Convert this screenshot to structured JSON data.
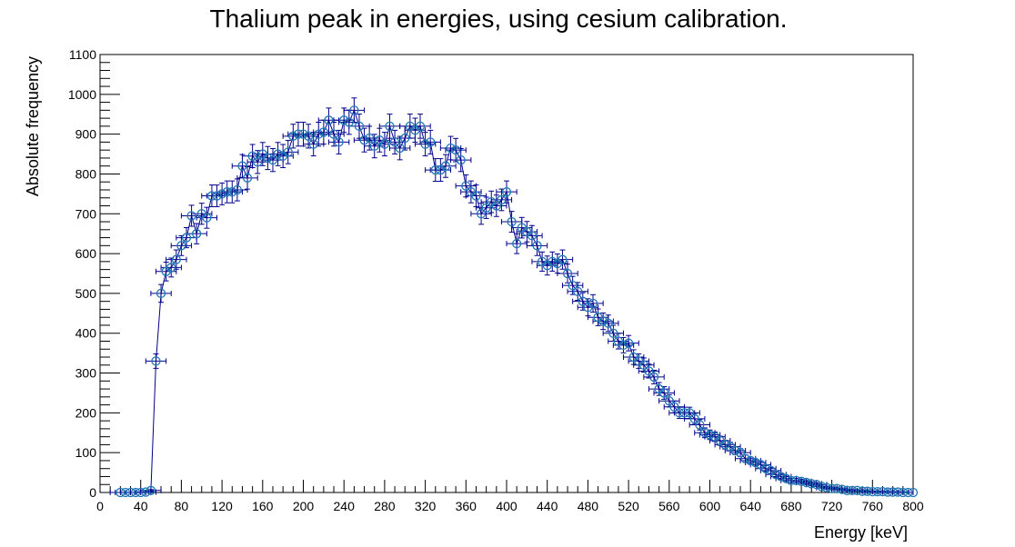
{
  "colors": {
    "marker": "#1f77b4",
    "line": "#00008b",
    "error": "#00008b",
    "frame": "#000000"
  },
  "chart_data": {
    "type": "scatter",
    "title": "Thalium peak in energies, using cesium calibration.",
    "xlabel": "Energy [keV]",
    "ylabel": "Absolute frequency",
    "xlim": [
      0,
      800
    ],
    "ylim": [
      0,
      1100
    ],
    "x_ticks": [
      0,
      40,
      80,
      120,
      160,
      200,
      240,
      280,
      320,
      360,
      400,
      440,
      480,
      520,
      560,
      600,
      640,
      680,
      720,
      760,
      800
    ],
    "y_ticks": [
      0,
      100,
      200,
      300,
      400,
      500,
      600,
      700,
      800,
      900,
      1000,
      1100
    ],
    "x_error": 10,
    "grid": false,
    "legend": false,
    "series": [
      {
        "x": [
          20,
          25,
          30,
          35,
          40,
          45,
          50,
          55,
          60,
          65,
          70,
          75,
          80,
          85,
          90,
          95,
          100,
          105,
          110,
          115,
          120,
          125,
          130,
          135,
          140,
          145,
          150,
          155,
          160,
          165,
          170,
          175,
          180,
          185,
          190,
          195,
          200,
          205,
          210,
          215,
          220,
          225,
          230,
          235,
          240,
          245,
          250,
          255,
          260,
          265,
          270,
          275,
          280,
          285,
          290,
          295,
          300,
          305,
          310,
          315,
          320,
          325,
          330,
          335,
          340,
          345,
          350,
          355,
          360,
          365,
          370,
          375,
          380,
          385,
          390,
          395,
          400,
          405,
          410,
          415,
          420,
          425,
          430,
          435,
          440,
          445,
          450,
          455,
          460,
          465,
          470,
          475,
          480,
          485,
          490,
          495,
          500,
          505,
          510,
          515,
          520,
          525,
          530,
          535,
          540,
          545,
          550,
          555,
          560,
          565,
          570,
          575,
          580,
          585,
          590,
          595,
          600,
          605,
          610,
          615,
          620,
          625,
          630,
          635,
          640,
          645,
          650,
          655,
          660,
          665,
          670,
          675,
          680,
          685,
          690,
          695,
          700,
          705,
          710,
          715,
          720,
          725,
          730,
          735,
          740,
          745,
          750,
          755,
          760,
          765,
          770,
          775,
          780,
          785,
          790,
          795,
          800
        ],
        "y": [
          0,
          0,
          0,
          0,
          0,
          1,
          5,
          330,
          500,
          555,
          565,
          585,
          620,
          640,
          695,
          650,
          700,
          690,
          745,
          745,
          750,
          755,
          755,
          760,
          820,
          790,
          845,
          830,
          850,
          840,
          835,
          850,
          845,
          855,
          895,
          900,
          900,
          895,
          875,
          900,
          905,
          935,
          900,
          880,
          935,
          930,
          960,
          920,
          885,
          890,
          870,
          885,
          875,
          920,
          880,
          865,
          890,
          920,
          910,
          920,
          875,
          880,
          810,
          810,
          820,
          865,
          860,
          835,
          770,
          755,
          745,
          700,
          715,
          730,
          720,
          735,
          755,
          680,
          625,
          665,
          655,
          645,
          620,
          580,
          570,
          580,
          575,
          585,
          550,
          520,
          505,
          480,
          465,
          475,
          440,
          430,
          425,
          400,
          380,
          370,
          375,
          340,
          330,
          320,
          305,
          290,
          260,
          250,
          230,
          215,
          200,
          200,
          200,
          185,
          170,
          150,
          145,
          140,
          130,
          120,
          115,
          105,
          100,
          85,
          80,
          75,
          70,
          60,
          55,
          45,
          40,
          35,
          30,
          30,
          28,
          25,
          22,
          20,
          15,
          12,
          10,
          10,
          8,
          5,
          5,
          5,
          3,
          3,
          2,
          2,
          2,
          1,
          1,
          1,
          0,
          0,
          0
        ]
      }
    ]
  }
}
